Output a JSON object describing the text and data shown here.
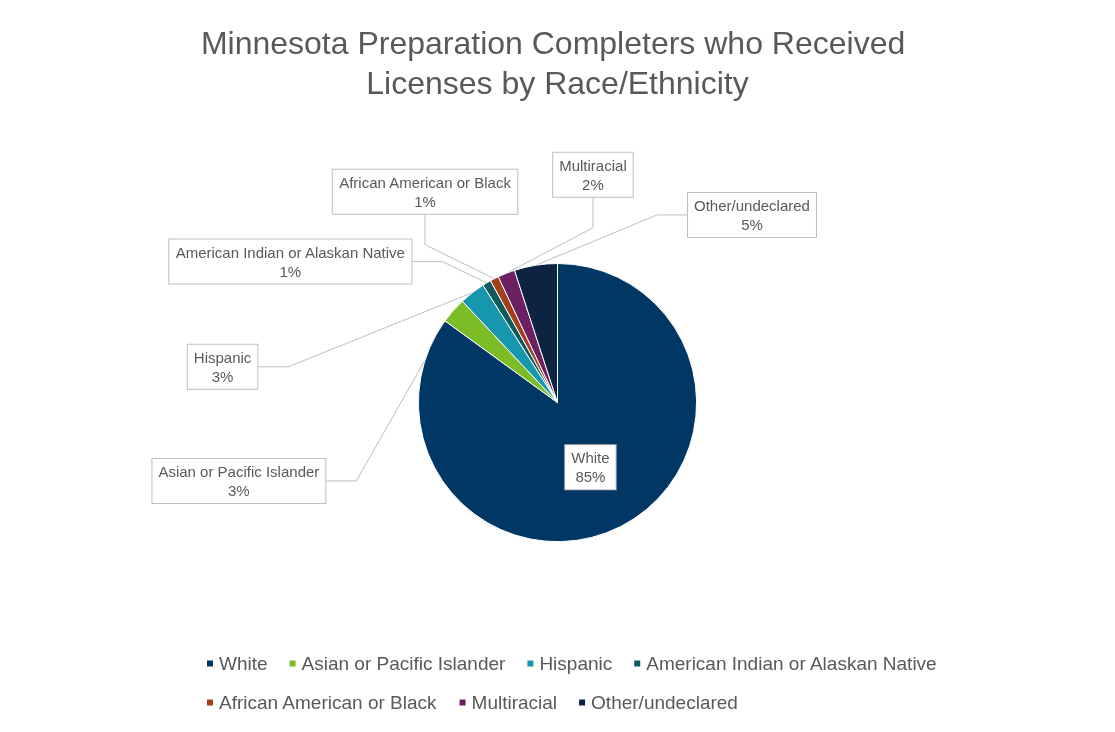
{
  "chart_data": {
    "type": "pie",
    "title": "Minnesota Preparation Completers who Received Licenses by Race/Ethnicity",
    "categories": [
      "White",
      "Asian or Pacific Islander",
      "Hispanic",
      "American Indian or Alaskan Native",
      "African American or Black",
      "Multiracial",
      "Other/undeclared"
    ],
    "values": [
      85,
      3,
      3,
      1,
      1,
      2,
      5
    ],
    "colors": [
      "#003764",
      "#7cbc26",
      "#1797ad",
      "#0e5b5e",
      "#a2401c",
      "#6b2062",
      "#0c2441"
    ],
    "value_labels": [
      "85%",
      "3%",
      "3%",
      "1%",
      "1%",
      "2%",
      "5%"
    ],
    "legend": "bottom"
  }
}
